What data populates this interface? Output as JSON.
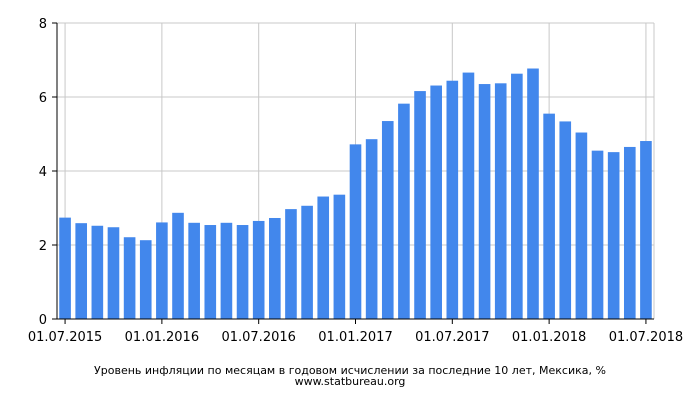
{
  "chart_data": {
    "type": "bar",
    "title": "Уровень инфляции по месяцам в годовом исчислении за последние 10 лет, Мексика, %",
    "source": "www.statbureau.org",
    "xlabel": "",
    "ylabel": "",
    "ylim": [
      0,
      8
    ],
    "yticks": [
      0,
      2,
      4,
      6,
      8
    ],
    "x_tick_labels": [
      "01.07.2015",
      "01.01.2016",
      "01.07.2016",
      "01.01.2017",
      "01.07.2017",
      "01.01.2018",
      "01.07.2018"
    ],
    "x_tick_label_category_index": [
      0,
      6,
      12,
      18,
      24,
      30,
      36
    ],
    "categories": [
      "2015-07",
      "2015-08",
      "2015-09",
      "2015-10",
      "2015-11",
      "2015-12",
      "2016-01",
      "2016-02",
      "2016-03",
      "2016-04",
      "2016-05",
      "2016-06",
      "2016-07",
      "2016-08",
      "2016-09",
      "2016-10",
      "2016-11",
      "2016-12",
      "2017-01",
      "2017-02",
      "2017-03",
      "2017-04",
      "2017-05",
      "2017-06",
      "2017-07",
      "2017-08",
      "2017-09",
      "2017-10",
      "2017-11",
      "2017-12",
      "2018-01",
      "2018-02",
      "2018-03",
      "2018-04",
      "2018-05",
      "2018-06",
      "2018-07"
    ],
    "values": [
      2.74,
      2.59,
      2.52,
      2.48,
      2.21,
      2.13,
      2.61,
      2.87,
      2.6,
      2.54,
      2.6,
      2.54,
      2.65,
      2.73,
      2.97,
      3.06,
      3.31,
      3.36,
      4.72,
      4.86,
      5.35,
      5.82,
      6.16,
      6.31,
      6.44,
      6.66,
      6.35,
      6.37,
      6.63,
      6.77,
      5.55,
      5.34,
      5.04,
      4.55,
      4.51,
      4.65,
      4.81
    ],
    "bar_color": "#4287ec",
    "grid": true,
    "legend": "none"
  }
}
